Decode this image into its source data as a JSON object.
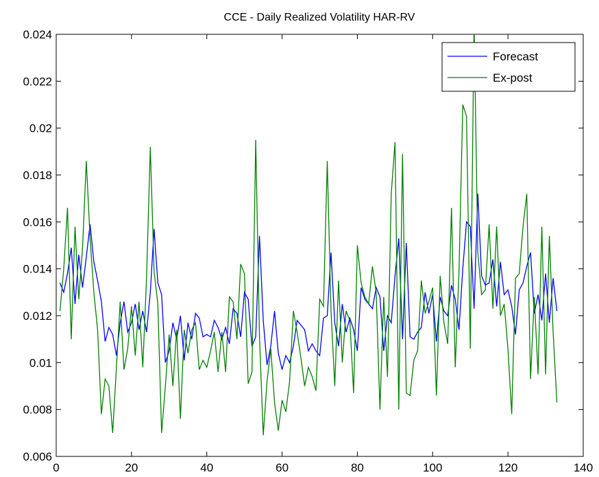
{
  "chart_data": {
    "type": "line",
    "title": "CCE - Daily Realized Volatility HAR-RV",
    "x": [
      1,
      2,
      3,
      4,
      5,
      6,
      7,
      8,
      9,
      10,
      11,
      12,
      13,
      14,
      15,
      16,
      17,
      18,
      19,
      20,
      21,
      22,
      23,
      24,
      25,
      26,
      27,
      28,
      29,
      30,
      31,
      32,
      33,
      34,
      35,
      36,
      37,
      38,
      39,
      40,
      41,
      42,
      43,
      44,
      45,
      46,
      47,
      48,
      49,
      50,
      51,
      52,
      53,
      54,
      55,
      56,
      57,
      58,
      59,
      60,
      61,
      62,
      63,
      64,
      65,
      66,
      67,
      68,
      69,
      70,
      71,
      72,
      73,
      74,
      75,
      76,
      77,
      78,
      79,
      80,
      81,
      82,
      83,
      84,
      85,
      86,
      87,
      88,
      89,
      90,
      91,
      92,
      93,
      94,
      95,
      96,
      97,
      98,
      99,
      100,
      101,
      102,
      103,
      104,
      105,
      106,
      107,
      108,
      109,
      110,
      111,
      112,
      113,
      114,
      115,
      116,
      117,
      118,
      119,
      120,
      121,
      122,
      123,
      124,
      125,
      126,
      127,
      128,
      129,
      130,
      131,
      132,
      133
    ],
    "series": [
      {
        "name": "Forecast",
        "color": "#0000ff",
        "values": [
          0.0134,
          0.013,
          0.0138,
          0.0149,
          0.0125,
          0.0146,
          0.0132,
          0.0145,
          0.0159,
          0.0143,
          0.0135,
          0.0126,
          0.0109,
          0.0115,
          0.0112,
          0.0103,
          0.0117,
          0.0126,
          0.0113,
          0.0117,
          0.0125,
          0.0114,
          0.0122,
          0.0113,
          0.013,
          0.0157,
          0.0134,
          0.0129,
          0.01,
          0.0105,
          0.0117,
          0.011,
          0.012,
          0.0101,
          0.0117,
          0.011,
          0.0121,
          0.0119,
          0.0111,
          0.0112,
          0.0111,
          0.0118,
          0.0115,
          0.011,
          0.0115,
          0.0108,
          0.0123,
          0.0121,
          0.0111,
          0.013,
          0.0127,
          0.0107,
          0.0111,
          0.0154,
          0.0118,
          0.0099,
          0.0107,
          0.0122,
          0.0104,
          0.0097,
          0.0103,
          0.01,
          0.0107,
          0.0118,
          0.0116,
          0.0114,
          0.0105,
          0.0108,
          0.0105,
          0.0103,
          0.0119,
          0.012,
          0.0147,
          0.0117,
          0.0107,
          0.0125,
          0.0113,
          0.0119,
          0.0114,
          0.0105,
          0.0132,
          0.0127,
          0.0125,
          0.0123,
          0.0132,
          0.0128,
          0.0105,
          0.012,
          0.0117,
          0.0137,
          0.0153,
          0.011,
          0.0151,
          0.0111,
          0.011,
          0.0113,
          0.0115,
          0.013,
          0.0121,
          0.0129,
          0.0109,
          0.0128,
          0.0122,
          0.012,
          0.0133,
          0.0127,
          0.0114,
          0.014,
          0.016,
          0.0158,
          0.0123,
          0.0172,
          0.0137,
          0.0133,
          0.0134,
          0.0144,
          0.0124,
          0.0143,
          0.0129,
          0.0131,
          0.0124,
          0.0112,
          0.0131,
          0.0134,
          0.0141,
          0.0147,
          0.0121,
          0.0129,
          0.0118,
          0.0138,
          0.0117,
          0.0136,
          0.0122
        ]
      },
      {
        "name": "Ex-post",
        "color": "#008000",
        "values": [
          0.0122,
          0.014,
          0.0166,
          0.011,
          0.0158,
          0.0127,
          0.0149,
          0.0186,
          0.0153,
          0.013,
          0.0114,
          0.0078,
          0.0093,
          0.009,
          0.007,
          0.0098,
          0.0126,
          0.0097,
          0.0106,
          0.0124,
          0.0103,
          0.0126,
          0.0098,
          0.0136,
          0.0192,
          0.0139,
          0.0125,
          0.007,
          0.009,
          0.0112,
          0.009,
          0.0114,
          0.0076,
          0.0114,
          0.0104,
          0.0114,
          0.0117,
          0.0097,
          0.0101,
          0.0098,
          0.0105,
          0.0113,
          0.0096,
          0.0113,
          0.0096,
          0.0128,
          0.0126,
          0.011,
          0.0142,
          0.0138,
          0.0091,
          0.0096,
          0.0195,
          0.0111,
          0.0069,
          0.0092,
          0.0106,
          0.0083,
          0.0071,
          0.0084,
          0.0079,
          0.0092,
          0.0122,
          0.0113,
          0.0102,
          0.009,
          0.0098,
          0.0094,
          0.0088,
          0.0127,
          0.0124,
          0.0186,
          0.0122,
          0.009,
          0.0135,
          0.01,
          0.0122,
          0.0118,
          0.0087,
          0.015,
          0.0134,
          0.0128,
          0.0125,
          0.0141,
          0.013,
          0.008,
          0.0128,
          0.0094,
          0.0172,
          0.0194,
          0.008,
          0.0189,
          0.0087,
          0.0086,
          0.0101,
          0.0105,
          0.0135,
          0.0121,
          0.0126,
          0.0132,
          0.0086,
          0.0137,
          0.0117,
          0.0108,
          0.0166,
          0.0098,
          0.0139,
          0.021,
          0.0205,
          0.0106,
          0.0245,
          0.0147,
          0.0129,
          0.0131,
          0.0159,
          0.0123,
          0.0158,
          0.012,
          0.0125,
          0.0106,
          0.0078,
          0.0136,
          0.0138,
          0.0158,
          0.0172,
          0.0093,
          0.0128,
          0.0095,
          0.0158,
          0.0095,
          0.0154,
          0.0113,
          0.0083
        ]
      }
    ],
    "xlim": [
      0,
      140
    ],
    "xticks": [
      0,
      20,
      40,
      60,
      80,
      100,
      120,
      140
    ],
    "ylim": [
      0.006,
      0.024
    ],
    "yticks": [
      0.006,
      0.008,
      0.01,
      0.012,
      0.014,
      0.016,
      0.018,
      0.02,
      0.022,
      0.024
    ],
    "legend": "upper right"
  }
}
